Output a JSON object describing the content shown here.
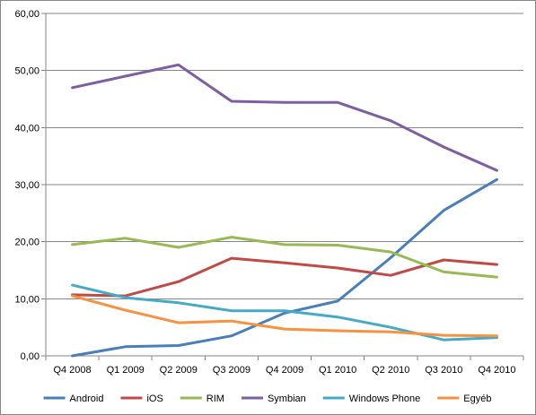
{
  "chart_data": {
    "type": "line",
    "title": "",
    "xlabel": "",
    "ylabel": "",
    "ylim": [
      0,
      60
    ],
    "y_ticks": [
      "0,00",
      "10,00",
      "20,00",
      "30,00",
      "40,00",
      "50,00",
      "60,00"
    ],
    "categories": [
      "Q4 2008",
      "Q1 2009",
      "Q2 2009",
      "Q3 2009",
      "Q4 2009",
      "Q1 2010",
      "Q2 2010",
      "Q3 2010",
      "Q4 2010"
    ],
    "grid": "horizontal",
    "legend_position": "bottom",
    "series": [
      {
        "name": "Android",
        "color": "#4a7ebb",
        "values": [
          0.0,
          1.6,
          1.8,
          3.5,
          7.5,
          9.6,
          17.2,
          25.5,
          30.9
        ]
      },
      {
        "name": "iOS",
        "color": "#be4b48",
        "values": [
          10.7,
          10.5,
          13.0,
          17.1,
          16.3,
          15.4,
          14.1,
          16.8,
          16.0
        ]
      },
      {
        "name": "RIM",
        "color": "#98b954",
        "values": [
          19.5,
          20.6,
          19.0,
          20.8,
          19.5,
          19.4,
          18.2,
          14.7,
          13.8
        ]
      },
      {
        "name": "Symbian",
        "color": "#7d5fa0",
        "values": [
          47.0,
          49.0,
          51.0,
          44.6,
          44.4,
          44.4,
          41.2,
          36.6,
          32.5
        ]
      },
      {
        "name": "Windows Phone",
        "color": "#46aac5",
        "values": [
          12.4,
          10.2,
          9.3,
          7.9,
          7.9,
          6.8,
          5.0,
          2.8,
          3.2
        ]
      },
      {
        "name": "Egyéb",
        "color": "#f69240",
        "values": [
          10.5,
          8.0,
          5.8,
          6.1,
          4.7,
          4.4,
          4.2,
          3.6,
          3.5
        ]
      }
    ]
  }
}
